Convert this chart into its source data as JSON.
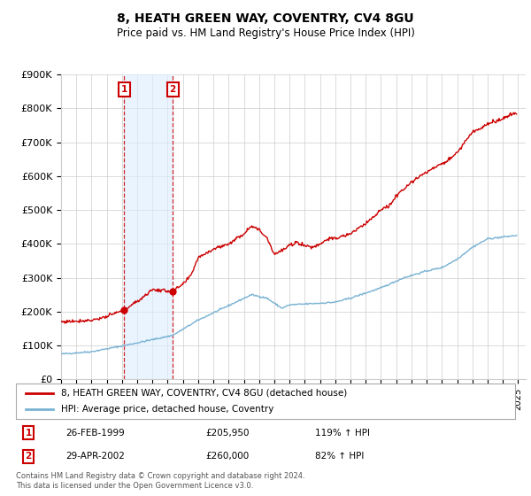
{
  "title": "8, HEATH GREEN WAY, COVENTRY, CV4 8GU",
  "subtitle": "Price paid vs. HM Land Registry's House Price Index (HPI)",
  "ylim": [
    0,
    900000
  ],
  "yticks": [
    0,
    100000,
    200000,
    300000,
    400000,
    500000,
    600000,
    700000,
    800000,
    900000
  ],
  "ytick_labels": [
    "£0",
    "£100K",
    "£200K",
    "£300K",
    "£400K",
    "£500K",
    "£600K",
    "£700K",
    "£800K",
    "£900K"
  ],
  "xlim_start": 1995.0,
  "xlim_end": 2025.5,
  "sale1_date_x": 1999.15,
  "sale1_price": 205950,
  "sale1_label": "1",
  "sale1_display": "26-FEB-1999",
  "sale1_amount": "£205,950",
  "sale1_hpi": "119% ↑ HPI",
  "sale2_date_x": 2002.33,
  "sale2_price": 260000,
  "sale2_label": "2",
  "sale2_display": "29-APR-2002",
  "sale2_amount": "£260,000",
  "sale2_hpi": "82% ↑ HPI",
  "red_line_color": "#cc0000",
  "blue_line_color": "#7ab3d4",
  "shade_color": "#ddeeff",
  "marker_box_color": "#cc0000",
  "legend_label_red": "8, HEATH GREEN WAY, COVENTRY, CV4 8GU (detached house)",
  "legend_label_blue": "HPI: Average price, detached house, Coventry",
  "footer_text": "Contains HM Land Registry data © Crown copyright and database right 2024.\nThis data is licensed under the Open Government Licence v3.0.",
  "background_color": "#ffffff",
  "grid_color": "#cccccc"
}
